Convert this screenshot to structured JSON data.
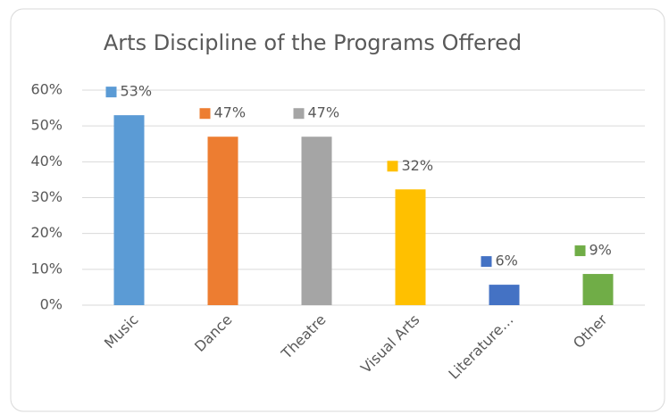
{
  "chart_data": {
    "type": "bar",
    "title": "Arts Discipline of the Programs Offered",
    "categories": [
      "Music",
      "Dance",
      "Theatre",
      "Visual Arts",
      "Literature…",
      "Other"
    ],
    "values": [
      53,
      47,
      47,
      32.3,
      5.7,
      8.7
    ],
    "value_labels": [
      "53%",
      "47%",
      "47%",
      "32%",
      "6%",
      "9%"
    ],
    "colors": [
      "#5b9bd5",
      "#ed7d31",
      "#a5a5a5",
      "#ffc000",
      "#4472c4",
      "#70ad47"
    ],
    "ylim": [
      0,
      60
    ],
    "yticks": [
      {
        "value": 0,
        "label": "0%"
      },
      {
        "value": 10,
        "label": "10%"
      },
      {
        "value": 20,
        "label": "20%"
      },
      {
        "value": 30,
        "label": "30%"
      },
      {
        "value": 40,
        "label": "40%"
      },
      {
        "value": 50,
        "label": "50%"
      },
      {
        "value": 60,
        "label": "60%"
      }
    ],
    "grid": true
  }
}
